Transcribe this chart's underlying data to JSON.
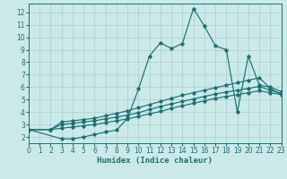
{
  "xlabel": "Humidex (Indice chaleur)",
  "bg_color": "#cce9ea",
  "grid_color": "#b0d0d2",
  "line_color": "#1a7070",
  "xlim": [
    0,
    23
  ],
  "ylim": [
    1.5,
    12.7
  ],
  "xticks": [
    0,
    1,
    2,
    3,
    4,
    5,
    6,
    7,
    8,
    9,
    10,
    11,
    12,
    13,
    14,
    15,
    16,
    17,
    18,
    19,
    20,
    21,
    22,
    23
  ],
  "yticks": [
    2,
    3,
    4,
    5,
    6,
    7,
    8,
    9,
    10,
    11,
    12
  ],
  "line1_x": [
    0,
    2,
    3,
    4,
    5,
    6,
    7,
    8,
    9,
    10,
    11,
    12,
    13,
    14,
    15,
    16,
    17,
    18,
    19,
    20,
    21,
    22,
    23
  ],
  "line1_y": [
    2.6,
    2.6,
    3.2,
    3.3,
    3.4,
    3.5,
    3.7,
    3.9,
    4.1,
    4.35,
    4.6,
    4.85,
    5.1,
    5.35,
    5.55,
    5.75,
    5.95,
    6.15,
    6.35,
    6.55,
    6.75,
    5.9,
    5.4
  ],
  "line2_x": [
    0,
    2,
    3,
    4,
    5,
    6,
    7,
    8,
    9,
    10,
    11,
    12,
    13,
    14,
    15,
    16,
    17,
    18,
    19,
    20,
    21,
    22,
    23
  ],
  "line2_y": [
    2.6,
    2.6,
    3.0,
    3.1,
    3.2,
    3.3,
    3.45,
    3.6,
    3.75,
    3.95,
    4.2,
    4.45,
    4.65,
    4.85,
    5.05,
    5.25,
    5.45,
    5.6,
    5.75,
    5.9,
    6.05,
    5.75,
    5.5
  ],
  "line3_x": [
    0,
    2,
    3,
    4,
    5,
    6,
    7,
    8,
    9,
    10,
    11,
    12,
    13,
    14,
    15,
    16,
    17,
    18,
    19,
    20,
    21,
    22,
    23
  ],
  "line3_y": [
    2.6,
    2.6,
    2.7,
    2.8,
    2.9,
    3.0,
    3.15,
    3.3,
    3.45,
    3.65,
    3.85,
    4.05,
    4.3,
    4.5,
    4.7,
    4.9,
    5.1,
    5.25,
    5.4,
    5.55,
    5.7,
    5.55,
    5.4
  ],
  "line4_x": [
    0,
    3,
    4,
    5,
    6,
    7,
    8,
    9,
    10,
    11,
    12,
    13,
    14,
    15,
    16,
    17,
    18,
    19,
    20,
    21,
    22,
    23
  ],
  "line4_y": [
    2.6,
    1.85,
    1.85,
    2.0,
    2.2,
    2.4,
    2.55,
    3.5,
    5.85,
    8.5,
    9.55,
    9.1,
    9.5,
    12.3,
    10.9,
    9.3,
    9.0,
    4.0,
    8.5,
    6.15,
    6.0,
    5.65
  ]
}
